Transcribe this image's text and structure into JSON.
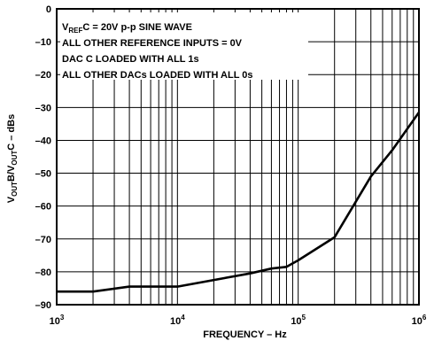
{
  "chart_data": {
    "type": "line",
    "title": "",
    "xlabel": "FREQUENCY – Hz",
    "ylabel_parts": [
      {
        "text": "V",
        "sub": false
      },
      {
        "text": "OUT",
        "sub": true
      },
      {
        "text": "B/V",
        "sub": false
      },
      {
        "text": "OUT",
        "sub": true
      },
      {
        "text": "C – dBs",
        "sub": false
      }
    ],
    "x_scale": "log",
    "xlim": [
      1000,
      1000000
    ],
    "ylim": [
      -90,
      0
    ],
    "grid": true,
    "x_ticks": [
      {
        "value": 1000,
        "base": "10",
        "exp": "3"
      },
      {
        "value": 10000,
        "base": "10",
        "exp": "4"
      },
      {
        "value": 100000,
        "base": "10",
        "exp": "5"
      },
      {
        "value": 1000000,
        "base": "10",
        "exp": "6"
      }
    ],
    "y_ticks": [
      0,
      -10,
      -20,
      -30,
      -40,
      -50,
      -60,
      -70,
      -80,
      -90
    ],
    "annotations": [
      {
        "parts": [
          {
            "text": "V",
            "sub": false
          },
          {
            "text": "REF",
            "sub": true
          },
          {
            "text": "C = 20V p-p SINE WAVE",
            "sub": false
          }
        ]
      },
      {
        "parts": [
          {
            "text": "ALL OTHER REFERENCE INPUTS = 0V",
            "sub": false
          }
        ]
      },
      {
        "parts": [
          {
            "text": "DAC C LOADED WITH ALL 1s",
            "sub": false
          }
        ]
      },
      {
        "parts": [
          {
            "text": "ALL OTHER DACs LOADED WITH ALL 0s",
            "sub": false
          }
        ]
      }
    ],
    "series": [
      {
        "x": [
          1000,
          2000,
          4000,
          10000,
          40000,
          60000,
          80000,
          100000,
          200000,
          400000,
          600000,
          800000,
          1000000
        ],
        "y": [
          -86,
          -86,
          -84.5,
          -84.5,
          -80.5,
          -79,
          -78.5,
          -76.5,
          -69.5,
          -51,
          -43,
          -36.5,
          -31.5
        ]
      }
    ]
  }
}
